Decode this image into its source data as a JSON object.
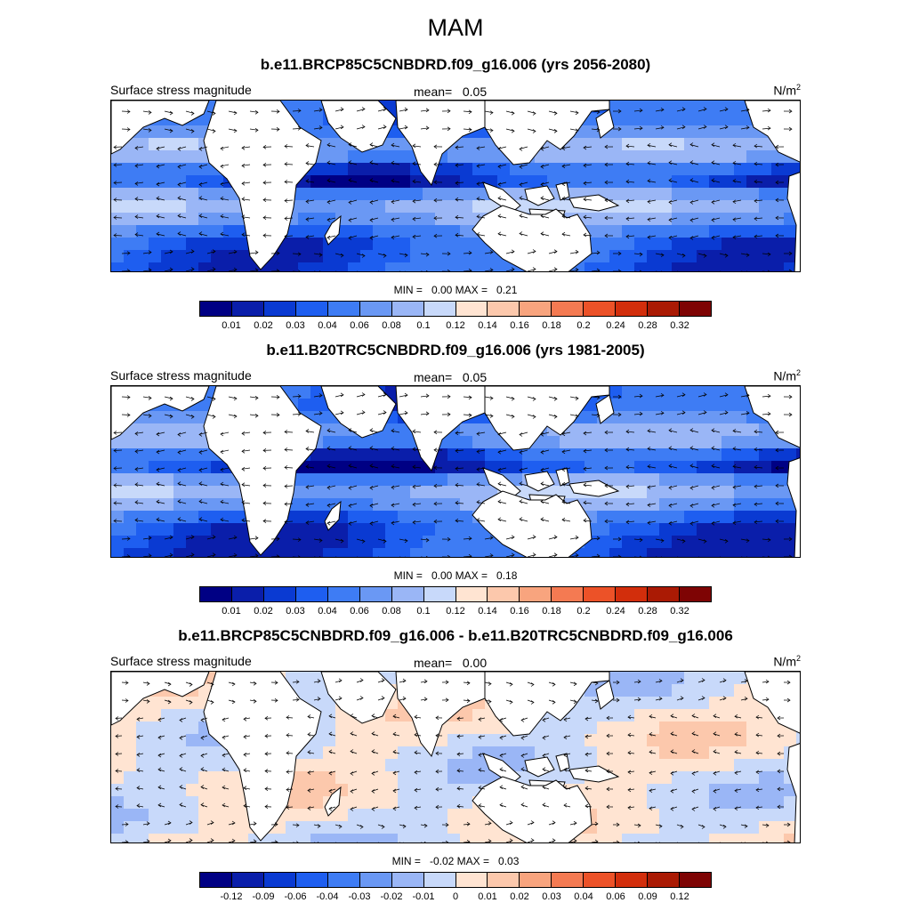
{
  "season": "MAM",
  "colormaps": {
    "stress": [
      "#000084",
      "#0a1eaa",
      "#0a3ad2",
      "#1e5ef0",
      "#3e7cf4",
      "#6a98f4",
      "#9ab6f6",
      "#c8d9fa",
      "#ffe4d2",
      "#fcc8ac",
      "#f8a47e",
      "#f47a52",
      "#ec5228",
      "#d22e0c",
      "#aa1a04",
      "#7e0404"
    ],
    "diff": [
      "#000084",
      "#0a1eaa",
      "#0a3ad2",
      "#1e5ef0",
      "#3e7cf4",
      "#6a98f4",
      "#9ab6f6",
      "#c8d9fa",
      "#ffe4d2",
      "#fcc8ac",
      "#f8a47e",
      "#f47a52",
      "#ec5228",
      "#d22e0c",
      "#aa1a04",
      "#7e0404"
    ]
  },
  "panels": [
    {
      "title": "b.e11.BRCP85C5CNBDRD.f09_g16.006 (yrs 2056-2080)",
      "field_label": "Surface stress magnitude",
      "mean_label": "mean=",
      "mean_value": "0.05",
      "units": "N/m",
      "units_sup": "2",
      "min_label": "MIN =",
      "min_value": "0.00",
      "max_label": "MAX =",
      "max_value": "0.21",
      "ticks": [
        "0.01",
        "0.02",
        "0.03",
        "0.04",
        "0.06",
        "0.08",
        "0.1",
        "0.12",
        "0.14",
        "0.16",
        "0.18",
        "0.2",
        "0.24",
        "0.28",
        "0.32"
      ]
    },
    {
      "title": "b.e11.B20TRC5CNBDRD.f09_g16.006 (yrs 1981-2005)",
      "field_label": "Surface stress magnitude",
      "mean_label": "mean=",
      "mean_value": "0.05",
      "units": "N/m",
      "units_sup": "2",
      "min_label": "MIN =",
      "min_value": "0.00",
      "max_label": "MAX =",
      "max_value": "0.18",
      "ticks": [
        "0.01",
        "0.02",
        "0.03",
        "0.04",
        "0.06",
        "0.08",
        "0.1",
        "0.12",
        "0.14",
        "0.16",
        "0.18",
        "0.2",
        "0.24",
        "0.28",
        "0.32"
      ]
    },
    {
      "title": "b.e11.BRCP85C5CNBDRD.f09_g16.006 - b.e11.B20TRC5CNBDRD.f09_g16.006",
      "field_label": "Surface stress magnitude",
      "mean_label": "mean=",
      "mean_value": "0.00",
      "units": "N/m",
      "units_sup": "2",
      "min_label": "MIN =",
      "min_value": "-0.02",
      "max_label": "MAX =",
      "max_value": "0.03",
      "ticks": [
        "-0.12",
        "-0.09",
        "-0.06",
        "-0.04",
        "-0.03",
        "-0.02",
        "-0.01",
        "0",
        "0.01",
        "0.02",
        "0.03",
        "0.04",
        "0.06",
        "0.09",
        "0.12"
      ]
    }
  ]
}
